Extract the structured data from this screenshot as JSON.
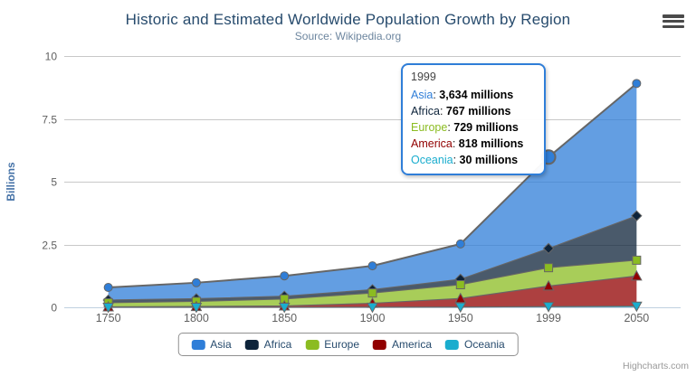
{
  "chart": {
    "title": "Historic and Estimated Worldwide Population Growth by Region",
    "subtitle": "Source: Wikipedia.org",
    "credit": "Highcharts.com"
  },
  "chart_data": {
    "type": "area",
    "stacking": "normal",
    "title": "Historic and Estimated Worldwide Population Growth by Region",
    "subtitle": "Source: Wikipedia.org",
    "categories": [
      "1750",
      "1800",
      "1850",
      "1900",
      "1950",
      "1999",
      "2050"
    ],
    "series": [
      {
        "name": "Asia",
        "color": "#2f7ed8",
        "marker": "circle",
        "values_millions": [
          502,
          635,
          809,
          947,
          1402,
          3634,
          5268
        ]
      },
      {
        "name": "Africa",
        "color": "#0d233a",
        "marker": "diamond",
        "values_millions": [
          106,
          107,
          111,
          133,
          221,
          767,
          1766
        ]
      },
      {
        "name": "Europe",
        "color": "#8bbc21",
        "marker": "square",
        "values_millions": [
          163,
          203,
          276,
          408,
          547,
          729,
          628
        ]
      },
      {
        "name": "America",
        "color": "#910000",
        "marker": "triangle",
        "values_millions": [
          18,
          31,
          54,
          156,
          339,
          818,
          1201
        ]
      },
      {
        "name": "Oceania",
        "color": "#1aadce",
        "marker": "triangle-down",
        "values_millions": [
          2,
          2,
          2,
          6,
          13,
          30,
          46
        ]
      }
    ],
    "unit": "millions",
    "xlabel": "",
    "ylabel": "Billions",
    "yticks": [
      0,
      2.5,
      5,
      7.5,
      10
    ],
    "ylim": [
      0,
      10
    ],
    "grid": true,
    "legend_position": "bottom",
    "line_color": "#666666",
    "fill_opacity": 0.75,
    "grid_color": "#c8c8c8",
    "axis_line_color": "#c0d0e0",
    "axis_label_color": "#606060",
    "hover": {
      "series": "Asia",
      "category": "1999"
    }
  },
  "tooltip": {
    "header": "1999",
    "rows": [
      {
        "name": "Asia",
        "value": "3,634 millions",
        "color": "#2f7ed8"
      },
      {
        "name": "Africa",
        "value": "767 millions",
        "color": "#0d233a"
      },
      {
        "name": "Europe",
        "value": "729 millions",
        "color": "#8bbc21"
      },
      {
        "name": "America",
        "value": "818 millions",
        "color": "#910000"
      },
      {
        "name": "Oceania",
        "value": "30 millions",
        "color": "#1aadce"
      }
    ]
  }
}
